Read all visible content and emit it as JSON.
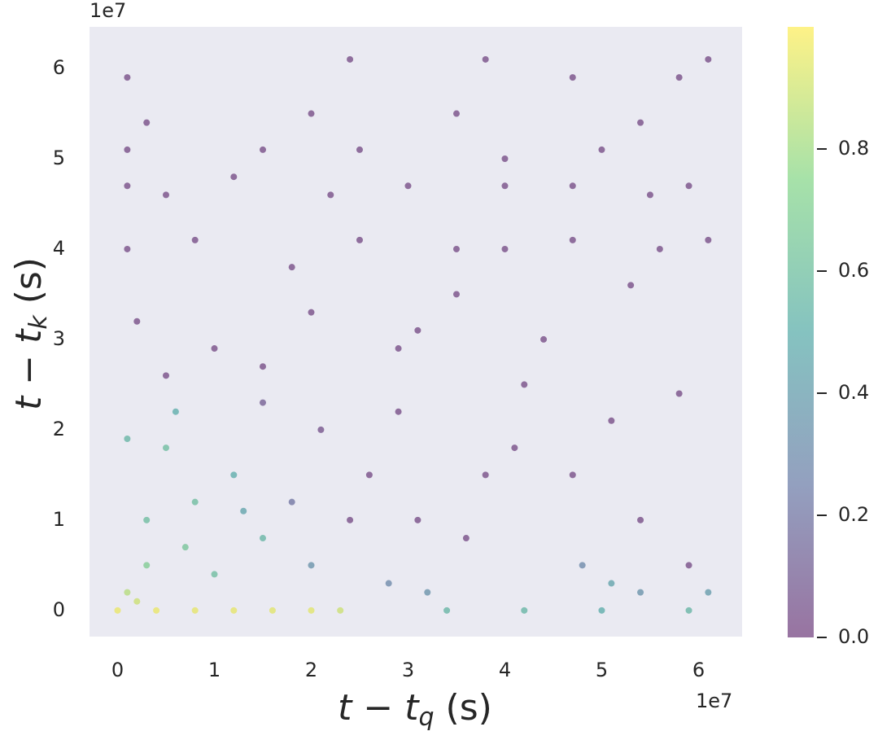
{
  "chart_data": {
    "type": "scatter",
    "colormap": "viridis",
    "alpha": 0.55,
    "grid": false,
    "xlabel": {
      "main": "t − t",
      "sub": "q",
      "unit": " (s)"
    },
    "ylabel": {
      "main": "t − t",
      "sub": "k",
      "unit": " (s)"
    },
    "x_offset": "1e7",
    "y_offset": "1e7",
    "xlim": [
      -0.29,
      6.45
    ],
    "ylim": [
      -0.29,
      6.46
    ],
    "xticks": [
      0,
      1,
      2,
      3,
      4,
      5,
      6
    ],
    "yticks": [
      0,
      1,
      2,
      3,
      4,
      5,
      6
    ],
    "clim": [
      0,
      1
    ],
    "cticks": [
      {
        "value": 0,
        "label": "0.0"
      },
      0.2,
      0.4,
      0.6,
      0.8
    ],
    "x": [
      0,
      0.4,
      0.8,
      1.2,
      1.6,
      2.0,
      2.3,
      3.4,
      4.2,
      5.0,
      5.9,
      0.1,
      0.2,
      0.3,
      0.8,
      1.5,
      0.5,
      1.2,
      1.0,
      0.6,
      2.0,
      1.8,
      2.1,
      1.5,
      0.3,
      0.7,
      1.3,
      0.1,
      2.4,
      2.6,
      2.9,
      3.1,
      2.8,
      3.2,
      2.9,
      3.1,
      1.0,
      0.2,
      2.0,
      1.5,
      0.5,
      0.1,
      0.8,
      1.8,
      2.5,
      3.5,
      4.0,
      4.7,
      5.6,
      6.1,
      0.1,
      0.5,
      1.2,
      2.2,
      3.0,
      4.0,
      4.7,
      5.5,
      5.9,
      0.1,
      1.5,
      2.5,
      4.0,
      5.0,
      0.3,
      2.0,
      3.5,
      5.4,
      0.1,
      2.4,
      3.8,
      4.7,
      5.8,
      6.1,
      3.5,
      4.2,
      4.7,
      5.1,
      5.4,
      5.8,
      4.8,
      5.1,
      3.8,
      3.6,
      4.1,
      5.9,
      6.1,
      5.4,
      4.4,
      5.3
    ],
    "y": [
      0,
      0,
      0,
      0,
      0,
      0,
      0,
      0,
      0,
      0,
      0,
      0.2,
      0.1,
      0.5,
      1.2,
      0.8,
      1.8,
      1.5,
      0.4,
      2.2,
      0.5,
      1.2,
      2.0,
      2.3,
      1.0,
      0.7,
      1.1,
      1.9,
      1.0,
      1.5,
      2.2,
      1.0,
      0.3,
      0.2,
      2.9,
      3.1,
      2.9,
      3.2,
      3.3,
      2.7,
      2.6,
      4.0,
      4.1,
      3.8,
      4.1,
      4.0,
      4.0,
      4.1,
      4.0,
      4.1,
      4.7,
      4.6,
      4.8,
      4.6,
      4.7,
      4.7,
      4.7,
      4.6,
      4.7,
      5.1,
      5.1,
      5.1,
      5.0,
      5.1,
      5.4,
      5.5,
      5.5,
      5.4,
      5.9,
      6.1,
      6.1,
      5.9,
      5.9,
      6.1,
      3.5,
      2.5,
      1.5,
      2.1,
      1.0,
      2.4,
      0.5,
      0.3,
      1.5,
      0.8,
      1.8,
      0.5,
      0.2,
      0.2,
      3.0,
      3.6
    ],
    "c": [
      0.97,
      0.97,
      0.96,
      0.96,
      0.95,
      0.95,
      0.9,
      0.55,
      0.55,
      0.5,
      0.55,
      0.85,
      0.9,
      0.7,
      0.6,
      0.55,
      0.6,
      0.5,
      0.6,
      0.5,
      0.35,
      0.2,
      0.05,
      0.1,
      0.6,
      0.65,
      0.45,
      0.55,
      0.02,
      0.02,
      0.02,
      0.02,
      0.3,
      0.35,
      0.02,
      0.02,
      0.02,
      0.02,
      0.02,
      0.02,
      0.02,
      0.02,
      0.02,
      0.02,
      0.02,
      0.02,
      0.02,
      0.02,
      0.02,
      0.02,
      0.02,
      0.02,
      0.02,
      0.02,
      0.02,
      0.02,
      0.02,
      0.02,
      0.02,
      0.02,
      0.02,
      0.02,
      0.02,
      0.02,
      0.02,
      0.02,
      0.02,
      0.02,
      0.02,
      0.02,
      0.02,
      0.02,
      0.02,
      0.02,
      0.02,
      0.02,
      0.02,
      0.02,
      0.02,
      0.02,
      0.3,
      0.45,
      0.02,
      0.02,
      0.02,
      0.02,
      0.4,
      0.35,
      0.02,
      0.02
    ]
  }
}
